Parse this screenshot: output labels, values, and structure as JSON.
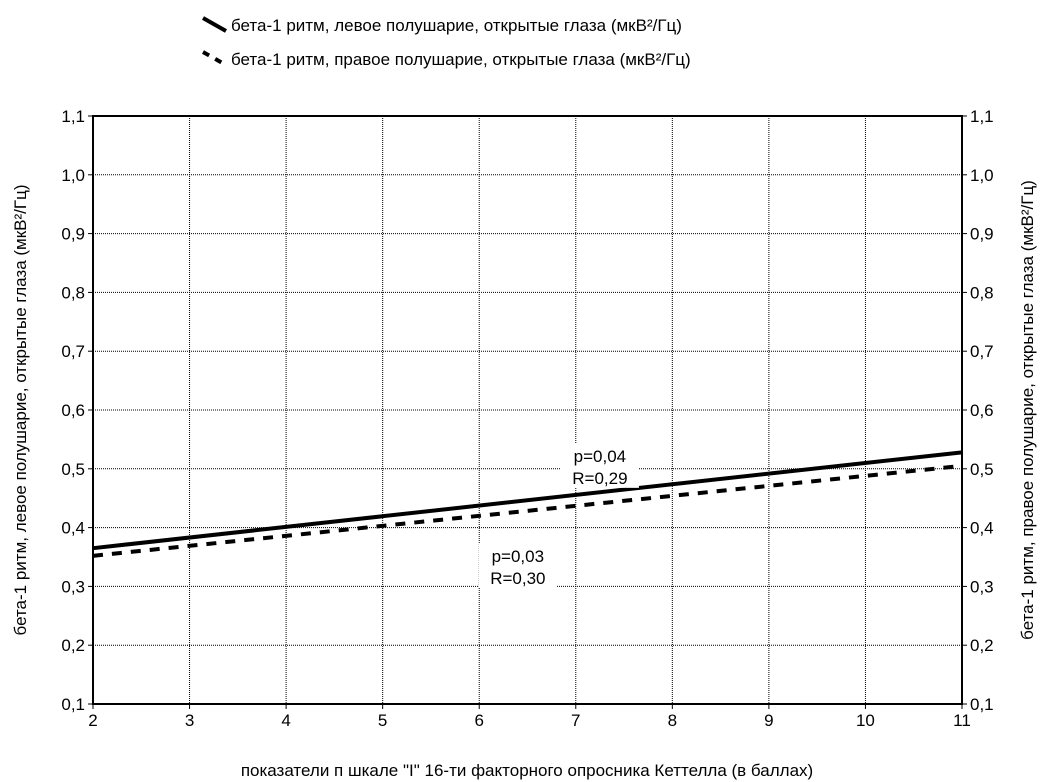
{
  "chart_data": {
    "type": "line",
    "legend_placement": "top-center",
    "grid": true,
    "series": [
      {
        "name": "бета-1 ритм, левое полушарие, открытые глаза (мкВ²/Гц)",
        "style": "solid",
        "x": [
          2,
          11
        ],
        "y": [
          0.365,
          0.528
        ]
      },
      {
        "name": "бета-1 ритм, правое полушарие, открытые глаза (мкВ²/Гц)",
        "style": "dashed",
        "x": [
          2,
          11
        ],
        "y": [
          0.352,
          0.505
        ]
      }
    ],
    "xlabel": "показатели п шкале \"I\" 16-ти факторного опросника Кеттелла (в баллах)",
    "ylabel_left": "бета-1 ритм, левое полушарие, открытые глаза (мкВ²/Гц)",
    "ylabel_right": "бета-1 ритм, правое полушарие, открытые глаза (мкВ²/Гц)",
    "xlim": [
      2,
      11
    ],
    "ylim": [
      0.1,
      1.1
    ],
    "xticks": [
      2,
      3,
      4,
      5,
      6,
      7,
      8,
      9,
      10,
      11
    ],
    "xtick_labels": [
      "2",
      "3",
      "4",
      "5",
      "6",
      "7",
      "8",
      "9",
      "10",
      "11"
    ],
    "yticks": [
      0.1,
      0.2,
      0.3,
      0.4,
      0.5,
      0.6,
      0.7,
      0.8,
      0.9,
      1.0,
      1.1
    ],
    "ytick_labels": [
      "0,1",
      "0,2",
      "0,3",
      "0,4",
      "0,5",
      "0,6",
      "0,7",
      "0,8",
      "0,9",
      "1,0",
      "1,1"
    ],
    "annotations": [
      {
        "lines": [
          "p=0,04",
          "R=0,29"
        ],
        "x": 7.25,
        "y": 0.505
      },
      {
        "lines": [
          "p=0,03",
          "R=0,30"
        ],
        "x": 6.4,
        "y": 0.335
      }
    ]
  }
}
